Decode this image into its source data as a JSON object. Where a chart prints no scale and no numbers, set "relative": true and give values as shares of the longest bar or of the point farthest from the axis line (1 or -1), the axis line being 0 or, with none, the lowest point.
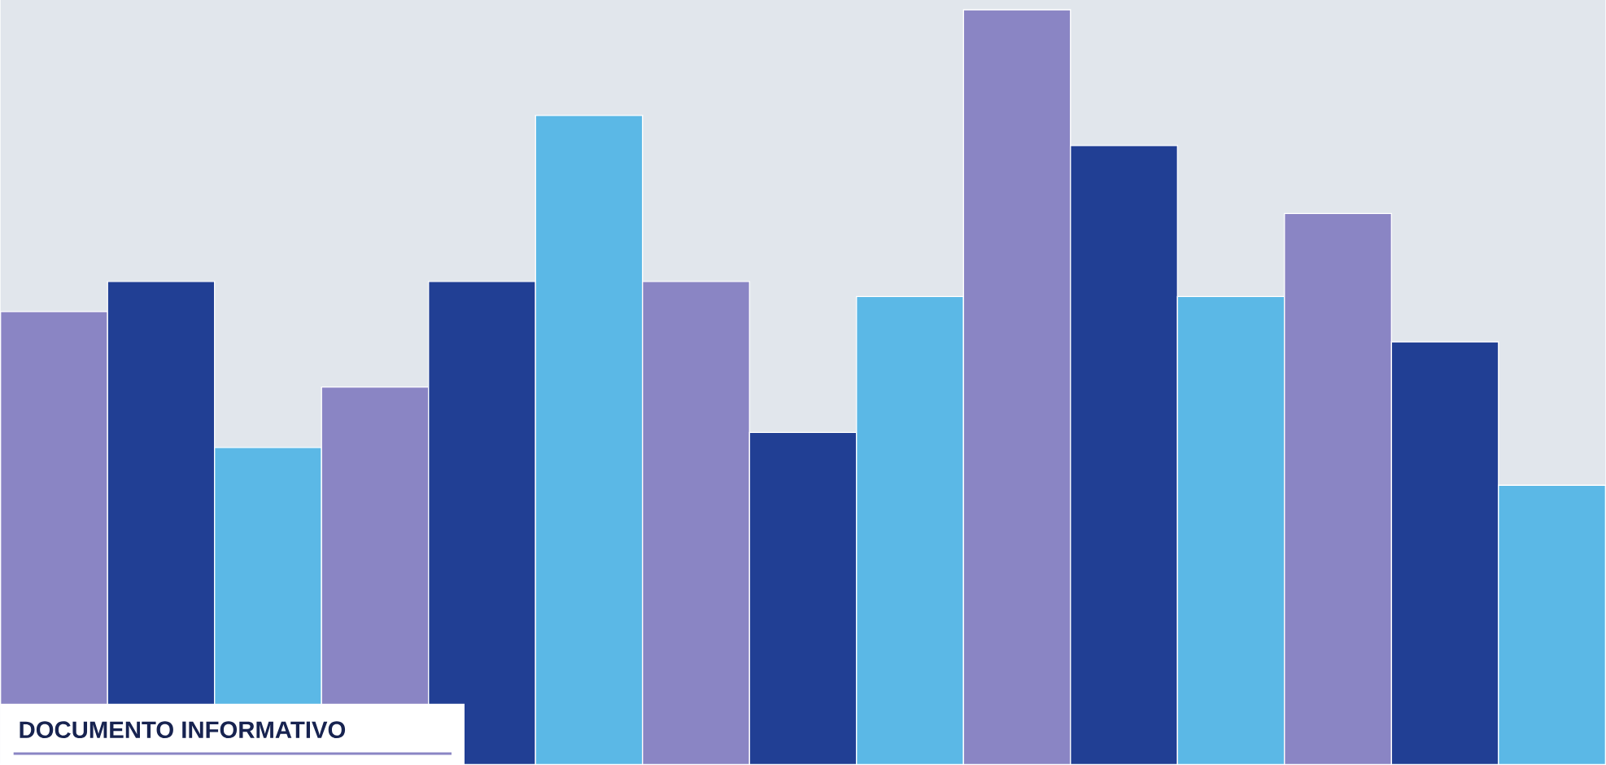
{
  "chart_data": {
    "type": "bar",
    "relative": true,
    "categories": [
      null,
      null,
      null,
      null,
      null,
      null,
      null,
      null,
      null,
      null,
      null,
      null,
      null,
      null,
      null
    ],
    "values": [
      0.6,
      0.64,
      0.42,
      0.5,
      0.64,
      0.86,
      0.64,
      0.44,
      0.62,
      1,
      0.82,
      0.62,
      0.73,
      0.56,
      0.37
    ],
    "colors": [
      "#8a85c4",
      "#213f94",
      "#5bb8e6",
      "#8a85c4",
      "#213f94",
      "#5bb8e6",
      "#8a85c4",
      "#213f94",
      "#5bb8e6",
      "#8a85c4",
      "#213f94",
      "#5bb8e6",
      "#8a85c4",
      "#213f94",
      "#5bb8e6"
    ],
    "annotations": [
      "DOCUMENTO INFORMATIVO"
    ]
  }
}
